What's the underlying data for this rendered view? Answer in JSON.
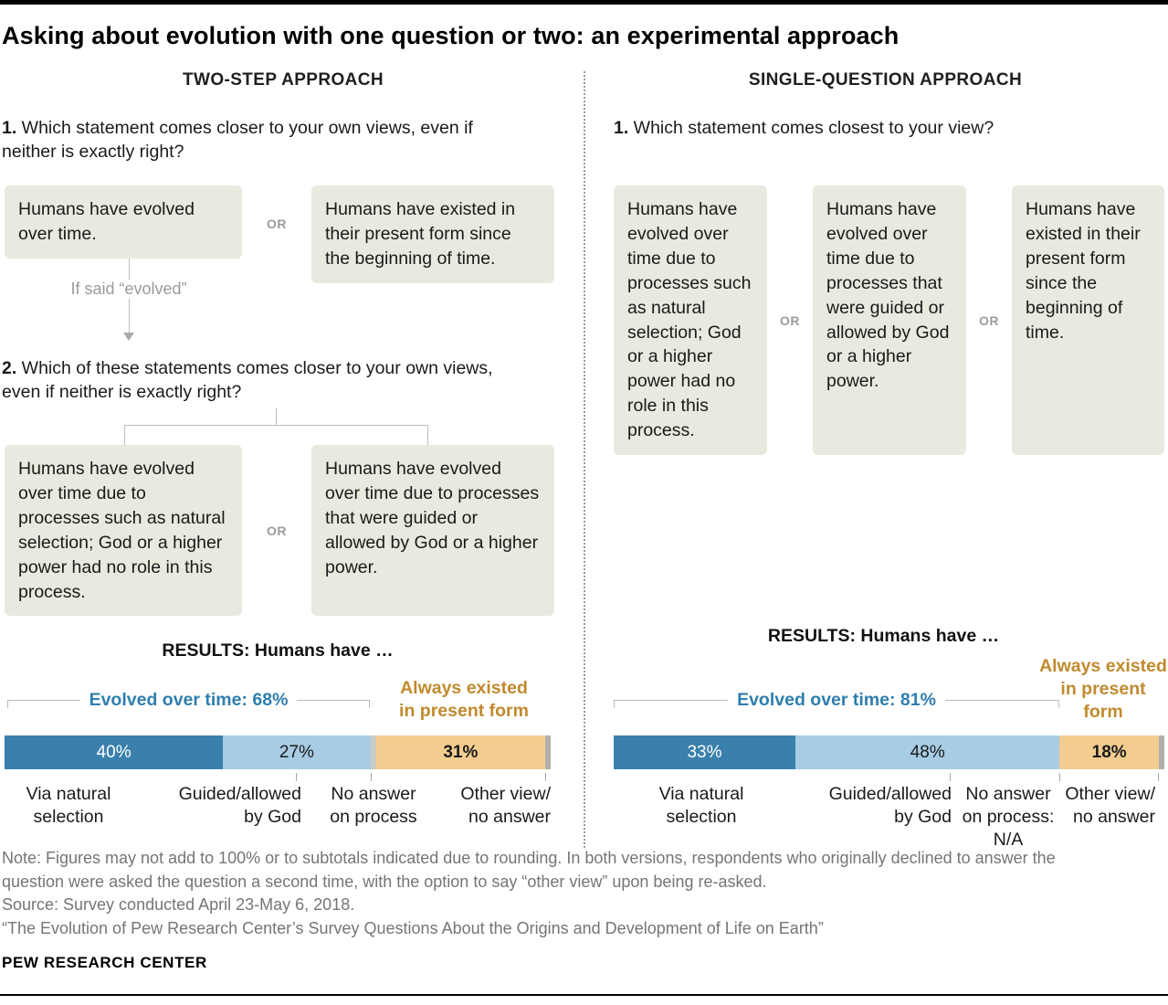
{
  "title": "Asking about evolution with one question or two: an experimental approach",
  "labels": {
    "or": "OR",
    "results_heading": "RESULTS: Humans have …"
  },
  "colors": {
    "dark_blue": "#3A80AD",
    "light_blue": "#A7CCE4",
    "tan": "#F3CD90",
    "gray_no_answer": "#CACAC6",
    "gray_other": "#B0B0AC",
    "box_bg": "#E9E9DF",
    "blue_text": "#2E7EAE",
    "orange_text": "#C18A2D"
  },
  "left_panel": {
    "header": "TWO-STEP APPROACH",
    "q1": {
      "num": "1.",
      "text": " Which statement comes closer to your own views, even if neither is exactly right?"
    },
    "option_evolved": "Humans have evolved over time.",
    "option_existed": "Humans have existed in their present form since the beginning of time.",
    "branch_label": "If said “evolved”",
    "q2": {
      "num": "2.",
      "text": " Which of these statements comes closer to your own views, even if neither is exactly right?"
    },
    "option_natural": "Humans have evolved over time due to processes such as natural selection; God or a higher power had no role in this process.",
    "option_guided": "Humans have evolved over time due to processes that were guided or allowed by God or a higher power.",
    "subtotal_label": "Evolved over time: 68%",
    "always_lines": [
      "Always existed",
      "in present form"
    ],
    "segments": {
      "natural": {
        "value": 40,
        "label": "40%"
      },
      "guided": {
        "value": 27,
        "label": "27%"
      },
      "no_answer": {
        "value": 1,
        "label": ""
      },
      "always": {
        "value": 31,
        "label": "31%"
      },
      "other": {
        "value": 1,
        "label": ""
      }
    },
    "axis_labels": {
      "natural": "Via natural selection",
      "guided": "Guided/allowed by God",
      "no_answer": "No answer on process",
      "other": "Other view/ no answer"
    }
  },
  "right_panel": {
    "header": "SINGLE-QUESTION APPROACH",
    "q1": {
      "num": "1.",
      "text": " Which statement comes closest to your view?"
    },
    "option_natural": "Humans have evolved over time due to processes such as natural selection; God or a higher power had no role in this process.",
    "option_guided": "Humans have evolved over time due to processes that were guided or allowed by God or a higher power.",
    "option_existed": "Humans have existed in their present form since the beginning of time.",
    "subtotal_label": "Evolved over time: 81%",
    "always_lines": [
      "Always existed",
      "in present",
      "form"
    ],
    "segments": {
      "natural": {
        "value": 33,
        "label": "33%"
      },
      "guided": {
        "value": 48,
        "label": "48%"
      },
      "always": {
        "value": 18,
        "label": "18%"
      },
      "other": {
        "value": 1,
        "label": ""
      }
    },
    "axis_labels": {
      "natural": "Via natural selection",
      "guided": "Guided/allowed by God",
      "no_answer": "No answer on process: N/A",
      "other": "Other view/ no answer"
    }
  },
  "chart_data": [
    {
      "type": "bar",
      "stacked": true,
      "title": "TWO-STEP APPROACH — RESULTS: Humans have …",
      "categories": [
        "Evolved via natural selection",
        "Evolved, guided/allowed by God",
        "No answer on process",
        "Always existed in present form",
        "Other view/no answer"
      ],
      "values": [
        40,
        27,
        1,
        31,
        1
      ],
      "unit": "%",
      "subtotal": {
        "label": "Evolved over time",
        "value": 68
      }
    },
    {
      "type": "bar",
      "stacked": true,
      "title": "SINGLE-QUESTION APPROACH — RESULTS: Humans have …",
      "categories": [
        "Evolved via natural selection",
        "Evolved, guided/allowed by God",
        "Always existed in present form",
        "Other view/no answer"
      ],
      "values": [
        33,
        48,
        18,
        1
      ],
      "unit": "%",
      "subtotal": {
        "label": "Evolved over time",
        "value": 81
      }
    }
  ],
  "footer": {
    "note": "Note: Figures may not add to 100% or to subtotals indicated due to rounding. In both versions, respondents who originally declined to answer the question were asked the question a second time, with the option to say “other view” upon being re-asked.",
    "source": "Source: Survey conducted April 23-May 6, 2018.",
    "citation": "“The Evolution of Pew Research Center’s Survey Questions About the Origins and Development of Life on Earth”",
    "brand": "PEW RESEARCH CENTER"
  }
}
